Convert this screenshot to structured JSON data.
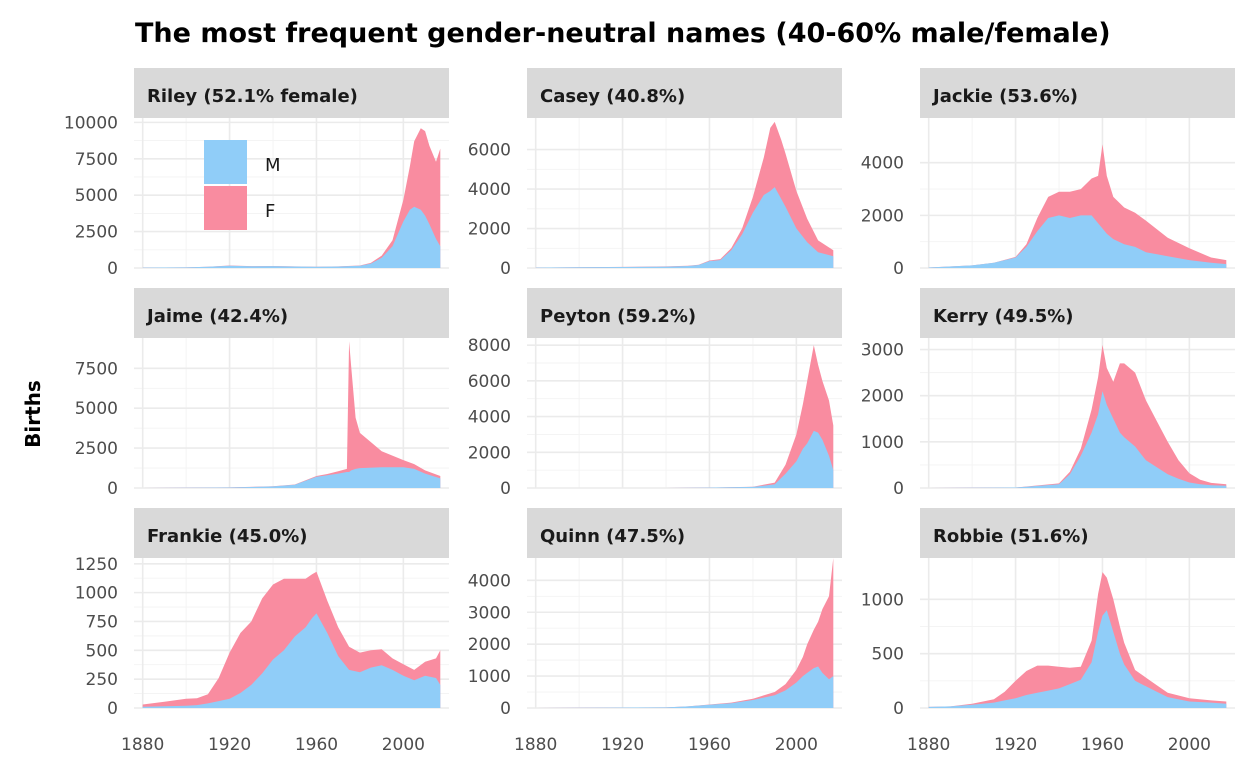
{
  "colors": {
    "M": "#90cdf8",
    "F": "#f98ca0",
    "strip": "#d9d9d9",
    "grid": "#ebebeb"
  },
  "chart_data": {
    "type": "area",
    "title": "The most frequent gender-neutral names (40-60% male/female)",
    "ylabel": "Births",
    "xlabel": "",
    "stacked": true,
    "grid": true,
    "legend": {
      "position": "inside first panel, top-left",
      "entries": [
        "M",
        "F"
      ]
    },
    "x_ticks": [
      "1880",
      "1920",
      "1960",
      "2000"
    ],
    "xlim": [
      1876,
      2021
    ],
    "panels": [
      {
        "label": "Riley (52.1% female)",
        "y_ticks": [
          "0",
          "2500",
          "5000",
          "7500",
          "10000"
        ],
        "ylim": [
          0,
          10300
        ],
        "x": [
          1880,
          1900,
          1910,
          1920,
          1930,
          1940,
          1950,
          1960,
          1970,
          1980,
          1985,
          1990,
          1995,
          2000,
          2003,
          2005,
          2008,
          2010,
          2012,
          2015,
          2017
        ],
        "M": [
          30,
          40,
          80,
          150,
          120,
          130,
          100,
          80,
          100,
          150,
          300,
          700,
          1500,
          3200,
          4000,
          4200,
          4000,
          3600,
          3000,
          2000,
          1500
        ],
        "F": [
          0,
          0,
          0,
          20,
          10,
          10,
          10,
          10,
          10,
          20,
          50,
          150,
          400,
          1500,
          3000,
          4500,
          5600,
          5800,
          5400,
          5300,
          6700
        ]
      },
      {
        "label": "Casey (40.8%)",
        "y_ticks": [
          "0",
          "2000",
          "4000",
          "6000"
        ],
        "ylim": [
          0,
          7600
        ],
        "x": [
          1880,
          1900,
          1920,
          1940,
          1950,
          1955,
          1960,
          1965,
          1970,
          1975,
          1980,
          1985,
          1988,
          1990,
          1993,
          1995,
          2000,
          2005,
          2010,
          2017
        ],
        "M": [
          20,
          40,
          50,
          70,
          100,
          150,
          350,
          400,
          900,
          1700,
          2800,
          3700,
          3900,
          4100,
          3500,
          3100,
          2000,
          1300,
          800,
          600
        ],
        "F": [
          0,
          0,
          5,
          10,
          10,
          15,
          30,
          50,
          100,
          300,
          800,
          1900,
          3200,
          3300,
          3000,
          2700,
          1900,
          1200,
          600,
          300
        ]
      },
      {
        "label": "Jackie (53.6%)",
        "y_ticks": [
          "0",
          "2000",
          "4000"
        ],
        "ylim": [
          0,
          5700
        ],
        "x": [
          1880,
          1900,
          1910,
          1920,
          1925,
          1930,
          1935,
          1940,
          1945,
          1950,
          1955,
          1958,
          1960,
          1962,
          1965,
          1970,
          1975,
          1980,
          1990,
          2000,
          2010,
          2017
        ],
        "M": [
          20,
          100,
          200,
          400,
          800,
          1400,
          1900,
          2000,
          1900,
          2000,
          2000,
          1700,
          1500,
          1300,
          1100,
          900,
          800,
          600,
          450,
          300,
          200,
          150
        ],
        "F": [
          0,
          0,
          0,
          20,
          100,
          500,
          800,
          900,
          1000,
          1000,
          1400,
          1800,
          3200,
          2200,
          1600,
          1400,
          1300,
          1200,
          700,
          450,
          200,
          150
        ]
      },
      {
        "label": "Jaime (42.4%)",
        "y_ticks": [
          "0",
          "2500",
          "5000",
          "7500"
        ],
        "ylim": [
          0,
          9400
        ],
        "x": [
          1880,
          1900,
          1920,
          1940,
          1950,
          1960,
          1965,
          1970,
          1974,
          1975,
          1976,
          1978,
          1980,
          1990,
          2000,
          2005,
          2010,
          2017
        ],
        "M": [
          0,
          10,
          30,
          100,
          200,
          700,
          800,
          900,
          1000,
          1000,
          1100,
          1200,
          1250,
          1300,
          1300,
          1200,
          900,
          600
        ],
        "F": [
          0,
          0,
          5,
          10,
          20,
          50,
          80,
          150,
          200,
          8200,
          6500,
          3200,
          2200,
          1000,
          450,
          300,
          200,
          150
        ]
      },
      {
        "label": "Peyton (59.2%)",
        "y_ticks": [
          "0",
          "2000",
          "4000",
          "6000",
          "8000"
        ],
        "ylim": [
          0,
          8400
        ],
        "x": [
          1880,
          1940,
          1960,
          1980,
          1990,
          1995,
          2000,
          2003,
          2005,
          2008,
          2010,
          2012,
          2015,
          2017
        ],
        "M": [
          0,
          0,
          20,
          60,
          200,
          800,
          1500,
          2200,
          2500,
          3200,
          3100,
          2700,
          1800,
          1000
        ],
        "F": [
          0,
          0,
          0,
          10,
          100,
          500,
          1500,
          2500,
          3500,
          4800,
          3800,
          3300,
          3100,
          2500
        ]
      },
      {
        "label": "Kerry (49.5%)",
        "y_ticks": [
          "0",
          "1000",
          "2000",
          "3000"
        ],
        "ylim": [
          0,
          3250
        ],
        "x": [
          1880,
          1920,
          1940,
          1945,
          1950,
          1955,
          1958,
          1960,
          1962,
          1965,
          1968,
          1970,
          1975,
          1980,
          1985,
          1990,
          1995,
          2000,
          2005,
          2010,
          2017
        ],
        "M": [
          0,
          10,
          80,
          300,
          700,
          1200,
          1600,
          2100,
          1800,
          1500,
          1200,
          1100,
          900,
          600,
          450,
          300,
          200,
          120,
          80,
          60,
          50
        ],
        "F": [
          0,
          0,
          20,
          50,
          150,
          500,
          800,
          1000,
          800,
          800,
          1500,
          1600,
          1600,
          1300,
          1000,
          700,
          400,
          200,
          100,
          50,
          30
        ]
      },
      {
        "label": "Frankie (45.0%)",
        "y_ticks": [
          "0",
          "250",
          "500",
          "750",
          "1000",
          "1250"
        ],
        "ylim": [
          0,
          1300
        ],
        "x": [
          1880,
          1890,
          1900,
          1905,
          1910,
          1915,
          1920,
          1925,
          1930,
          1935,
          1940,
          1945,
          1950,
          1955,
          1958,
          1960,
          1965,
          1970,
          1975,
          1980,
          1985,
          1990,
          1995,
          2000,
          2005,
          2010,
          2015,
          2017
        ],
        "M": [
          10,
          15,
          20,
          25,
          40,
          60,
          80,
          130,
          200,
          300,
          420,
          500,
          620,
          700,
          780,
          820,
          650,
          450,
          330,
          310,
          350,
          370,
          330,
          280,
          240,
          280,
          260,
          200
        ],
        "F": [
          20,
          40,
          60,
          60,
          80,
          200,
          400,
          520,
          550,
          650,
          650,
          620,
          500,
          420,
          380,
          360,
          280,
          250,
          200,
          170,
          150,
          140,
          100,
          100,
          90,
          120,
          170,
          300
        ]
      },
      {
        "label": "Quinn (47.5%)",
        "y_ticks": [
          "0",
          "1000",
          "2000",
          "3000",
          "4000"
        ],
        "ylim": [
          0,
          4700
        ],
        "x": [
          1880,
          1940,
          1950,
          1960,
          1970,
          1980,
          1990,
          1995,
          2000,
          2003,
          2005,
          2008,
          2010,
          2012,
          2015,
          2017
        ],
        "M": [
          0,
          20,
          50,
          100,
          150,
          250,
          400,
          550,
          800,
          1000,
          1100,
          1250,
          1300,
          1100,
          900,
          1000
        ],
        "F": [
          0,
          0,
          0,
          10,
          20,
          40,
          100,
          200,
          400,
          600,
          900,
          1200,
          1400,
          2000,
          2600,
          3700
        ]
      },
      {
        "label": "Robbie (51.6%)",
        "y_ticks": [
          "0",
          "500",
          "1000"
        ],
        "ylim": [
          0,
          1380
        ],
        "x": [
          1880,
          1890,
          1900,
          1910,
          1915,
          1920,
          1925,
          1930,
          1935,
          1940,
          1945,
          1950,
          1955,
          1958,
          1960,
          1962,
          1965,
          1968,
          1970,
          1975,
          1980,
          1985,
          1990,
          2000,
          2010,
          2017
        ],
        "M": [
          10,
          15,
          30,
          50,
          70,
          90,
          120,
          140,
          160,
          180,
          220,
          260,
          420,
          700,
          850,
          900,
          700,
          500,
          400,
          250,
          200,
          150,
          100,
          60,
          50,
          40
        ],
        "F": [
          0,
          0,
          10,
          30,
          80,
          160,
          220,
          250,
          230,
          200,
          150,
          120,
          200,
          350,
          400,
          300,
          300,
          250,
          200,
          100,
          80,
          60,
          40,
          30,
          20,
          20
        ]
      }
    ]
  }
}
